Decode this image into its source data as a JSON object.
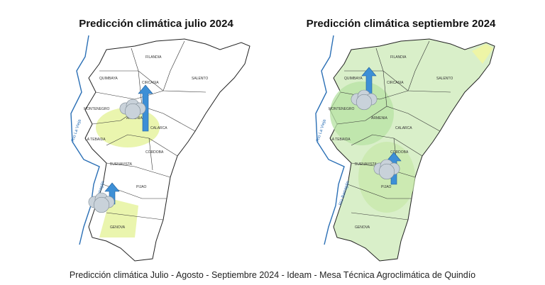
{
  "caption": "Predicción climática Julio - Agosto - Septiembre 2024 - Ideam - Mesa Técnica Agroclimática de Quindío",
  "maps": [
    {
      "title": "Predicción climática julio 2024",
      "municipalities": [
        "FILANDIA",
        "QUIMBAYA",
        "CIRCASIA",
        "SALENTO",
        "MONTENEGRO",
        "ARMENIA",
        "CALARCA",
        "LA TEBAIDA",
        "CORDOBA",
        "BUENAVISTA",
        "PIJAO",
        "GENOVA"
      ],
      "rivers": [
        "Río La Vieja",
        "Río Barragán"
      ]
    },
    {
      "title": "Predicción climática septiembre 2024",
      "municipalities": [
        "FILANDIA",
        "QUIMBAYA",
        "CIRCASIA",
        "SALENTO",
        "MONTENEGRO",
        "ARMENIA",
        "CALARCA",
        "LA TEBAIDA",
        "CORDOBA",
        "BUENAVISTA",
        "PIJAO",
        "GENOVA"
      ],
      "rivers": [
        "Río La Vieja",
        "Río Barragán"
      ]
    }
  ]
}
